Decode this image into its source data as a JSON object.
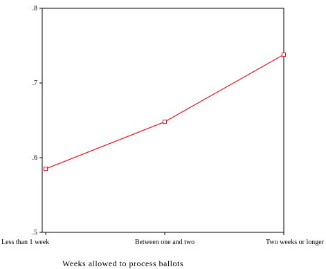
{
  "chart_data": {
    "type": "line",
    "categories": [
      "Less than 1 week",
      "Between one and two",
      "Two weeks or longer"
    ],
    "series": [
      {
        "values": [
          0.585,
          0.648,
          0.738
        ]
      }
    ],
    "xlabel": "Weeks allowed to process ballots",
    "ylabel": "",
    "ylim": [
      0.5,
      0.8
    ],
    "yticks": [
      ".5",
      ".6",
      ".7",
      ".8"
    ],
    "yticks_values": [
      0.5,
      0.6,
      0.7,
      0.8
    ],
    "grid": false,
    "marker": "open-square",
    "colors": {
      "line": "#e8171f",
      "axis": "#000000",
      "background": "#ffffff"
    }
  }
}
